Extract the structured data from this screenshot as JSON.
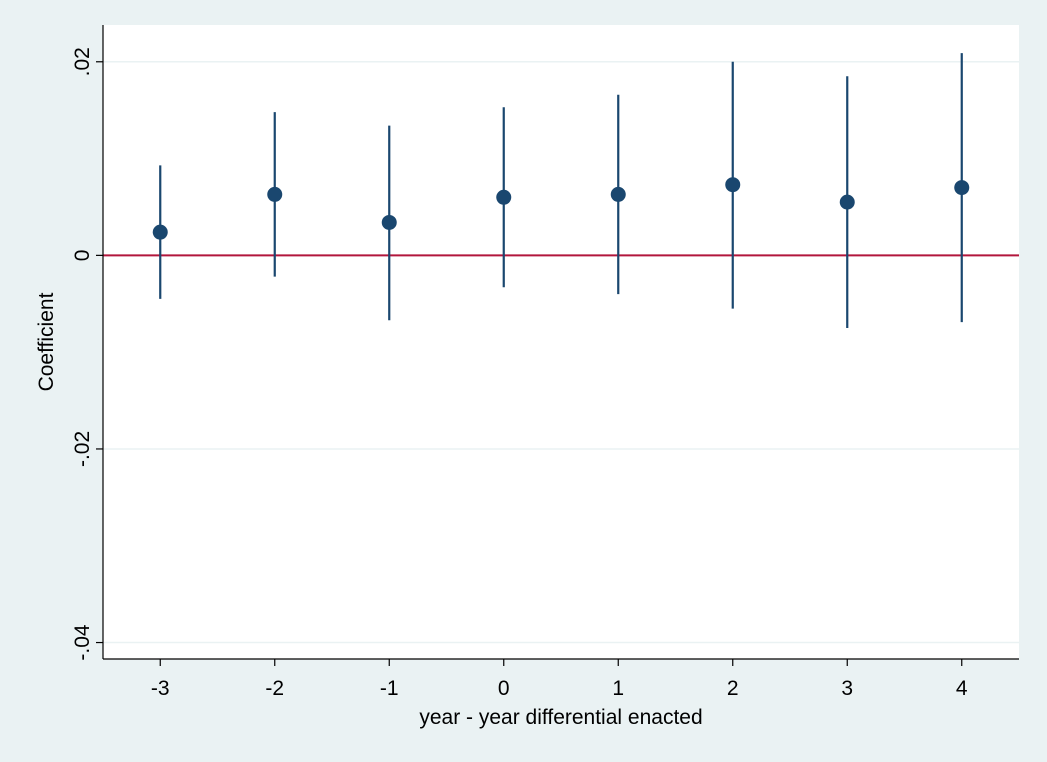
{
  "chart_data": {
    "type": "scatter",
    "subtype": "coefficient-plot-with-confidence-intervals",
    "xlabel": "year - year differential enacted",
    "ylabel": "Coefficient",
    "x_ticks": [
      {
        "value": -3,
        "label": "-3"
      },
      {
        "value": -2,
        "label": "-2"
      },
      {
        "value": -1,
        "label": "-1"
      },
      {
        "value": 0,
        "label": "0"
      },
      {
        "value": 1,
        "label": "1"
      },
      {
        "value": 2,
        "label": "2"
      },
      {
        "value": 3,
        "label": "3"
      },
      {
        "value": 4,
        "label": "4"
      }
    ],
    "y_ticks": [
      {
        "value": -0.04,
        "label": "-.04"
      },
      {
        "value": -0.02,
        "label": "-.02"
      },
      {
        "value": 0,
        "label": "0"
      },
      {
        "value": 0.02,
        "label": ".02"
      }
    ],
    "xlim": [
      -3.5,
      4.5
    ],
    "ylim": [
      -0.0417,
      0.0238
    ],
    "grid": "horizontal",
    "reference_line": {
      "y": 0,
      "color": "#b2163c"
    },
    "points": [
      {
        "x": -3,
        "y": 0.0024,
        "ci_low": -0.0045,
        "ci_high": 0.0093
      },
      {
        "x": -2,
        "y": 0.0063,
        "ci_low": -0.0022,
        "ci_high": 0.0148
      },
      {
        "x": -1,
        "y": 0.0034,
        "ci_low": -0.0067,
        "ci_high": 0.0134
      },
      {
        "x": 0,
        "y": 0.006,
        "ci_low": -0.0033,
        "ci_high": 0.0153
      },
      {
        "x": 1,
        "y": 0.0063,
        "ci_low": -0.004,
        "ci_high": 0.0166
      },
      {
        "x": 2,
        "y": 0.0073,
        "ci_low": -0.0055,
        "ci_high": 0.02
      },
      {
        "x": 3,
        "y": 0.0055,
        "ci_low": -0.0075,
        "ci_high": 0.0185
      },
      {
        "x": 4,
        "y": 0.007,
        "ci_low": -0.0069,
        "ci_high": 0.0209
      }
    ],
    "colors": {
      "marker": "#1a476f",
      "ci": "#1a476f",
      "reference": "#b2163c",
      "grid": "#eaf2f3",
      "plot_background": "#ffffff",
      "page_background": "#eaf2f3"
    }
  }
}
